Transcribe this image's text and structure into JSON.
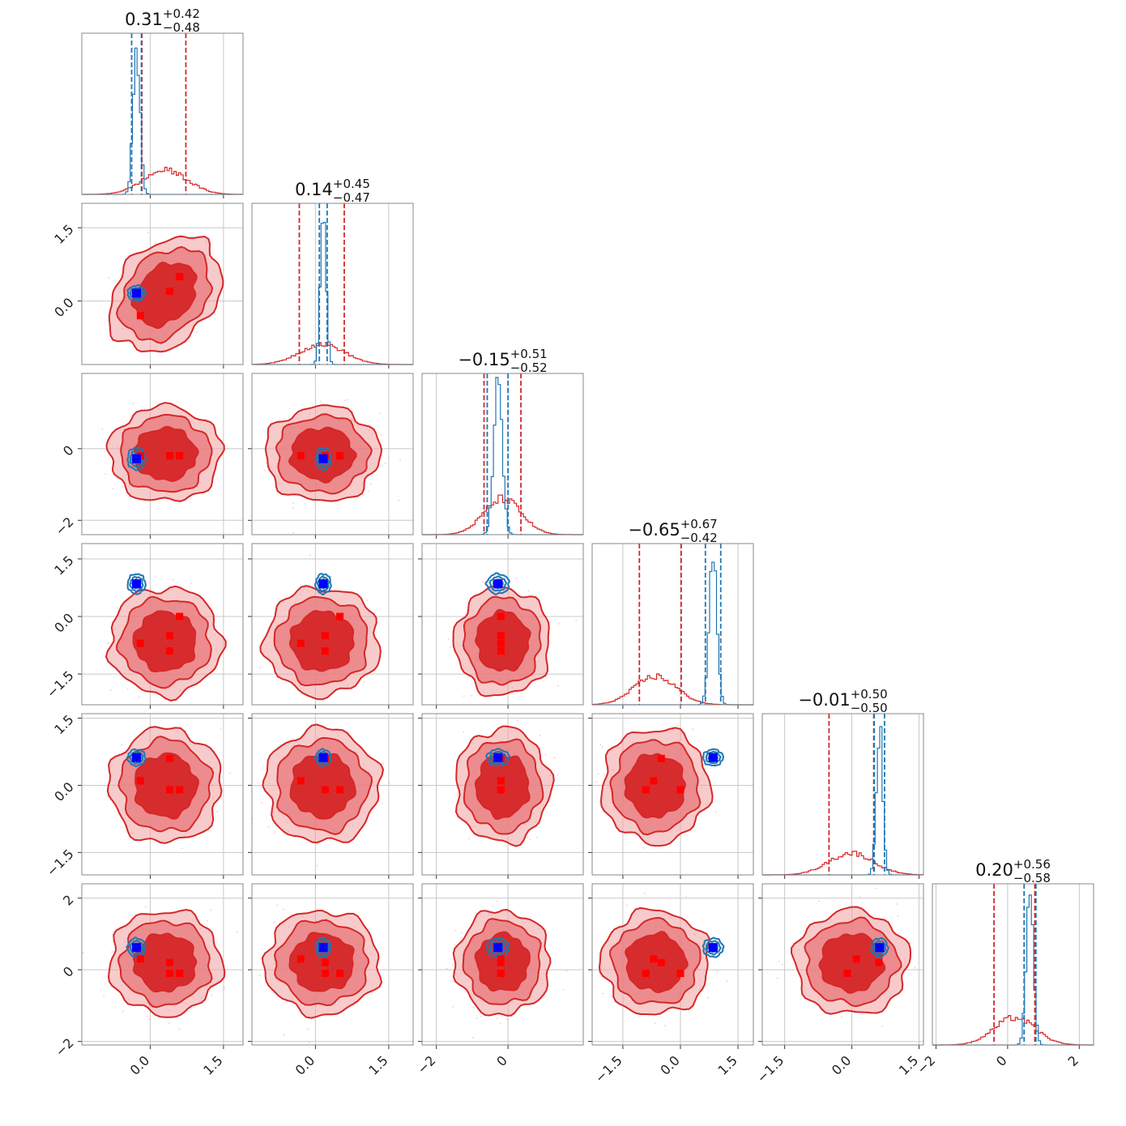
{
  "colors": {
    "red": "#d62728",
    "red_light": "#f0a0a0",
    "red_mid": "#e8777a",
    "blue": "#1f77b4",
    "marker_red": "#ff0000",
    "marker_blue": "#0000ff",
    "grid": "#c8c8c8"
  },
  "chart_data": {
    "type": "corner",
    "n_params": 6,
    "grid": true,
    "titles": [
      {
        "median": "0.31",
        "plus": "+0.42",
        "minus": "−0.48"
      },
      {
        "median": "0.14",
        "plus": "+0.45",
        "minus": "−0.47"
      },
      {
        "median": "−0.15",
        "plus": "+0.51",
        "minus": "−0.52"
      },
      {
        "median": "−0.65",
        "plus": "+0.67",
        "minus": "−0.42"
      },
      {
        "median": "−0.01",
        "plus": "+0.50",
        "minus": "−0.50"
      },
      {
        "median": "0.20",
        "plus": "+0.56",
        "minus": "−0.58"
      }
    ],
    "params": [
      {
        "range": [
          -1.4,
          1.9
        ],
        "ticks": [
          0.0,
          1.5
        ],
        "tick_labels": [
          "0.0",
          "1.5"
        ]
      },
      {
        "range": [
          -1.3,
          2.0
        ],
        "ticks": [
          0.0,
          1.5
        ],
        "tick_labels": [
          "0.0",
          "1.5"
        ]
      },
      {
        "range": [
          -2.4,
          2.1
        ],
        "ticks": [
          -2,
          0
        ],
        "tick_labels": [
          "−2",
          "0"
        ]
      },
      {
        "range": [
          -2.3,
          1.9
        ],
        "ticks": [
          -1.5,
          0.0,
          1.5
        ],
        "tick_labels": [
          "−1.5",
          "0.0",
          "1.5"
        ]
      },
      {
        "range": [
          -2.0,
          1.6
        ],
        "ticks": [
          -1.5,
          0.0,
          1.5
        ],
        "tick_labels": [
          "−1.5",
          "0.0",
          "1.5"
        ]
      },
      {
        "range": [
          -2.1,
          2.4
        ],
        "ticks": [
          -2,
          0,
          2
        ],
        "tick_labels": [
          "−2",
          "0",
          "2"
        ]
      }
    ],
    "posterior_red": {
      "mean": [
        0.31,
        0.14,
        -0.15,
        -0.65,
        -0.01,
        0.2
      ],
      "sigma": [
        0.45,
        0.46,
        0.52,
        0.55,
        0.5,
        0.57
      ],
      "q16": [
        -0.17,
        -0.33,
        -0.67,
        -1.07,
        -0.51,
        -0.38
      ],
      "q84": [
        0.73,
        0.59,
        0.36,
        0.02,
        0.49,
        0.76
      ],
      "correlation_01": 0.3
    },
    "posterior_blue": {
      "mean": [
        -0.28,
        0.16,
        -0.28,
        0.85,
        0.62,
        0.62
      ],
      "sigma": [
        0.07,
        0.06,
        0.12,
        0.1,
        0.07,
        0.1
      ],
      "q16": [
        -0.38,
        0.08,
        -0.58,
        0.65,
        0.5,
        0.46
      ],
      "q84": [
        -0.18,
        0.24,
        0.0,
        1.05,
        0.73,
        0.79
      ]
    },
    "blue_marker": [
      -0.28,
      0.16,
      -0.28,
      0.85,
      0.62,
      0.62
    ],
    "red_markers": [
      [
        -0.2,
        -0.3,
        -0.2,
        -0.7,
        0.1,
        0.3
      ],
      [
        0.4,
        0.2,
        -0.2,
        -0.5,
        0.6,
        0.2
      ],
      [
        0.6,
        0.5,
        -0.2,
        0.0,
        -0.1,
        -0.1
      ],
      [
        0.4,
        0.2,
        -0.2,
        -0.9,
        -0.1,
        -0.1
      ],
      [
        0.6,
        0.5,
        -0.2,
        0.0,
        -0.1,
        -0.1
      ]
    ]
  }
}
